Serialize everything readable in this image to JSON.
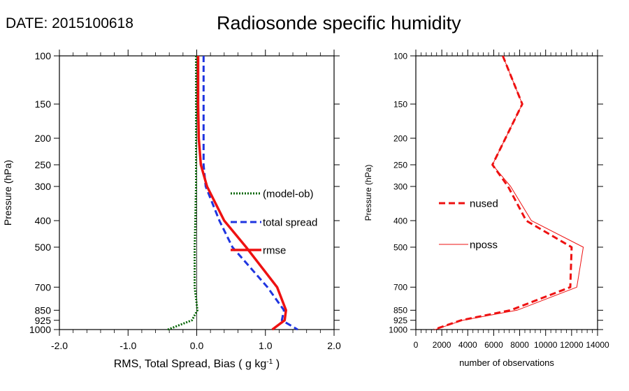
{
  "header": {
    "date_label": "DATE: 2015100618",
    "title": "Radiosonde specific humidity"
  },
  "chart_data": [
    {
      "type": "line",
      "title": "",
      "xlabel": "RMS, Total Spread, Bias ( g kg",
      "xlabel_sup": "-1",
      "xlabel_end": " )",
      "ylabel": "Pressure (hPa)",
      "xlim": [
        -2.0,
        2.0
      ],
      "ylim": [
        1000,
        100
      ],
      "yscale": "log",
      "x_ticks": [
        -2.0,
        -1.0,
        0.0,
        1.0,
        2.0
      ],
      "x_tick_labels": [
        "-2.0",
        "-1.0",
        "0.0",
        "1.0",
        "2.0"
      ],
      "y_ticks": [
        100,
        150,
        200,
        250,
        300,
        400,
        500,
        700,
        850,
        925,
        1000
      ],
      "y_tick_labels": [
        "100",
        "150",
        "200",
        "250",
        "300",
        "400",
        "500",
        "700",
        "850",
        "925",
        "1000"
      ],
      "zero_line": true,
      "legend_position": "center-right",
      "series": [
        {
          "name": "(model-ob)",
          "color": "#006400",
          "dash": "dotted",
          "points": [
            [
              -0.01,
              100
            ],
            [
              -0.01,
              150
            ],
            [
              -0.01,
              200
            ],
            [
              -0.01,
              250
            ],
            [
              -0.01,
              300
            ],
            [
              -0.02,
              400
            ],
            [
              -0.03,
              500
            ],
            [
              -0.03,
              700
            ],
            [
              0.01,
              850
            ],
            [
              -0.07,
              925
            ],
            [
              -0.42,
              1000
            ]
          ]
        },
        {
          "name": "total spread",
          "color": "#1f35e0",
          "dash": "dashed",
          "points": [
            [
              0.1,
              100
            ],
            [
              0.1,
              150
            ],
            [
              0.1,
              200
            ],
            [
              0.1,
              250
            ],
            [
              0.13,
              300
            ],
            [
              0.33,
              400
            ],
            [
              0.52,
              500
            ],
            [
              1.03,
              700
            ],
            [
              1.27,
              850
            ],
            [
              1.24,
              925
            ],
            [
              1.47,
              1000
            ]
          ]
        },
        {
          "name": "rmse",
          "color": "#ee1111",
          "dash": "solid",
          "points": [
            [
              0.02,
              100
            ],
            [
              0.02,
              150
            ],
            [
              0.03,
              200
            ],
            [
              0.06,
              250
            ],
            [
              0.15,
              300
            ],
            [
              0.4,
              400
            ],
            [
              0.72,
              500
            ],
            [
              1.17,
              700
            ],
            [
              1.3,
              850
            ],
            [
              1.28,
              925
            ],
            [
              1.1,
              1000
            ]
          ]
        }
      ]
    },
    {
      "type": "line",
      "title": "",
      "xlabel": "number of observations",
      "ylabel": "Pressure (hPa)",
      "xlim": [
        0,
        14000
      ],
      "ylim": [
        1000,
        100
      ],
      "yscale": "log",
      "x_ticks": [
        0,
        2000,
        4000,
        6000,
        8000,
        10000,
        12000,
        14000
      ],
      "x_tick_labels": [
        "0",
        "2000",
        "4000",
        "6000",
        "8000",
        "10000",
        "12000",
        "14000"
      ],
      "y_ticks": [
        100,
        150,
        200,
        250,
        300,
        400,
        500,
        700,
        850,
        925,
        1000
      ],
      "y_tick_labels": [
        "100",
        "150",
        "200",
        "250",
        "300",
        "400",
        "500",
        "700",
        "850",
        "925",
        "1000"
      ],
      "legend_position": "center-left",
      "series": [
        {
          "name": "nused",
          "color": "#ee1111",
          "dash": "dashed",
          "points": [
            [
              6700,
              100
            ],
            [
              8200,
              150
            ],
            [
              5900,
              250
            ],
            [
              7100,
              300
            ],
            [
              8500,
              400
            ],
            [
              12000,
              500
            ],
            [
              11900,
              700
            ],
            [
              7300,
              850
            ],
            [
              3500,
              925
            ],
            [
              1400,
              1000
            ]
          ]
        },
        {
          "name": "nposs",
          "color": "#ee1111",
          "dash": "thin",
          "points": [
            [
              6700,
              100
            ],
            [
              8200,
              150
            ],
            [
              5900,
              250
            ],
            [
              7300,
              300
            ],
            [
              8900,
              400
            ],
            [
              12900,
              500
            ],
            [
              12400,
              700
            ],
            [
              7800,
              850
            ],
            [
              3600,
              925
            ],
            [
              1500,
              1000
            ]
          ]
        }
      ]
    }
  ]
}
